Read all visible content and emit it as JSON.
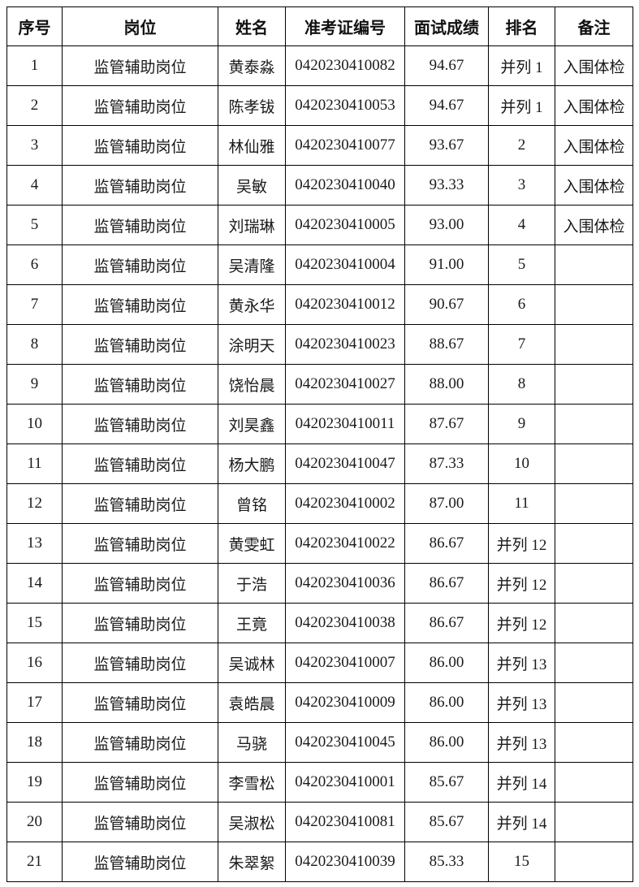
{
  "colors": {
    "background": "#ffffff",
    "border": "#000000",
    "text": "#1a1a1a"
  },
  "table": {
    "columns": [
      {
        "key": "index",
        "label": "序号"
      },
      {
        "key": "position",
        "label": "岗位"
      },
      {
        "key": "name",
        "label": "姓名"
      },
      {
        "key": "exam_id",
        "label": "准考证编号"
      },
      {
        "key": "score",
        "label": "面试成绩"
      },
      {
        "key": "rank",
        "label": "排名"
      },
      {
        "key": "remark",
        "label": "备注"
      }
    ],
    "rows": [
      [
        "1",
        "监管辅助岗位",
        "黄泰淼",
        "0420230410082",
        "94.67",
        "并列 1",
        "入围体检"
      ],
      [
        "2",
        "监管辅助岗位",
        "陈孝钹",
        "0420230410053",
        "94.67",
        "并列 1",
        "入围体检"
      ],
      [
        "3",
        "监管辅助岗位",
        "林仙雅",
        "0420230410077",
        "93.67",
        "2",
        "入围体检"
      ],
      [
        "4",
        "监管辅助岗位",
        "吴敏",
        "0420230410040",
        "93.33",
        "3",
        "入围体检"
      ],
      [
        "5",
        "监管辅助岗位",
        "刘瑞琳",
        "0420230410005",
        "93.00",
        "4",
        "入围体检"
      ],
      [
        "6",
        "监管辅助岗位",
        "吴清隆",
        "0420230410004",
        "91.00",
        "5",
        ""
      ],
      [
        "7",
        "监管辅助岗位",
        "黄永华",
        "0420230410012",
        "90.67",
        "6",
        ""
      ],
      [
        "8",
        "监管辅助岗位",
        "涂明天",
        "0420230410023",
        "88.67",
        "7",
        ""
      ],
      [
        "9",
        "监管辅助岗位",
        "饶怡晨",
        "0420230410027",
        "88.00",
        "8",
        ""
      ],
      [
        "10",
        "监管辅助岗位",
        "刘昊鑫",
        "0420230410011",
        "87.67",
        "9",
        ""
      ],
      [
        "11",
        "监管辅助岗位",
        "杨大鹏",
        "0420230410047",
        "87.33",
        "10",
        ""
      ],
      [
        "12",
        "监管辅助岗位",
        "曾铭",
        "0420230410002",
        "87.00",
        "11",
        ""
      ],
      [
        "13",
        "监管辅助岗位",
        "黄雯虹",
        "0420230410022",
        "86.67",
        "并列 12",
        ""
      ],
      [
        "14",
        "监管辅助岗位",
        "于浩",
        "0420230410036",
        "86.67",
        "并列 12",
        ""
      ],
      [
        "15",
        "监管辅助岗位",
        "王竟",
        "0420230410038",
        "86.67",
        "并列 12",
        ""
      ],
      [
        "16",
        "监管辅助岗位",
        "吴诚林",
        "0420230410007",
        "86.00",
        "并列 13",
        ""
      ],
      [
        "17",
        "监管辅助岗位",
        "袁皓晨",
        "0420230410009",
        "86.00",
        "并列 13",
        ""
      ],
      [
        "18",
        "监管辅助岗位",
        "马骁",
        "0420230410045",
        "86.00",
        "并列 13",
        ""
      ],
      [
        "19",
        "监管辅助岗位",
        "李雪松",
        "0420230410001",
        "85.67",
        "并列 14",
        ""
      ],
      [
        "20",
        "监管辅助岗位",
        "吴淑松",
        "0420230410081",
        "85.67",
        "并列 14",
        ""
      ],
      [
        "21",
        "监管辅助岗位",
        "朱翠絮",
        "0420230410039",
        "85.33",
        "15",
        ""
      ]
    ]
  }
}
